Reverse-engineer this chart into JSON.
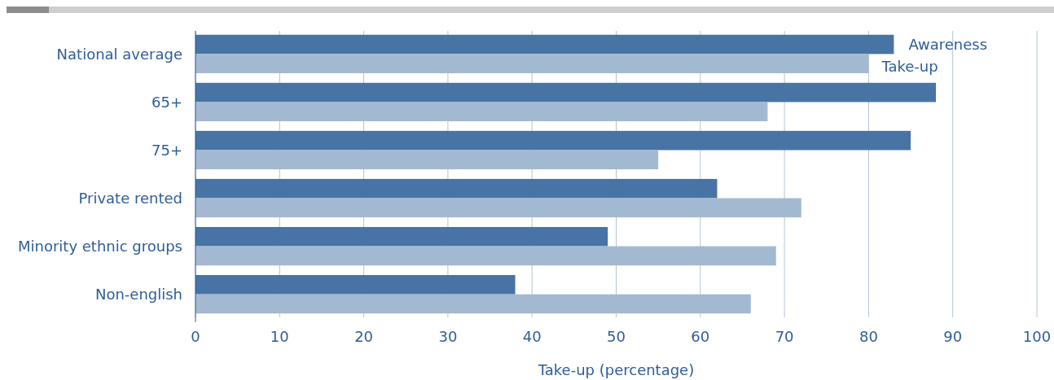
{
  "chart_data": {
    "type": "bar",
    "orientation": "horizontal",
    "xlabel": "Take-up (percentage)",
    "categories": [
      "National average",
      "65+",
      "75+",
      "Private rented",
      "Minority ethnic groups",
      "Non-english"
    ],
    "series": [
      {
        "name": "Awareness",
        "color": "#4873a5",
        "values": [
          83,
          88,
          85,
          62,
          49,
          38
        ]
      },
      {
        "name": "Take-up",
        "color": "#a3b9d2",
        "values": [
          80,
          68,
          55,
          72,
          69,
          66
        ]
      }
    ],
    "xlim": [
      0,
      100
    ],
    "xticks": [
      0,
      10,
      20,
      30,
      40,
      50,
      60,
      70,
      80,
      90,
      100
    ],
    "grid": "x"
  }
}
